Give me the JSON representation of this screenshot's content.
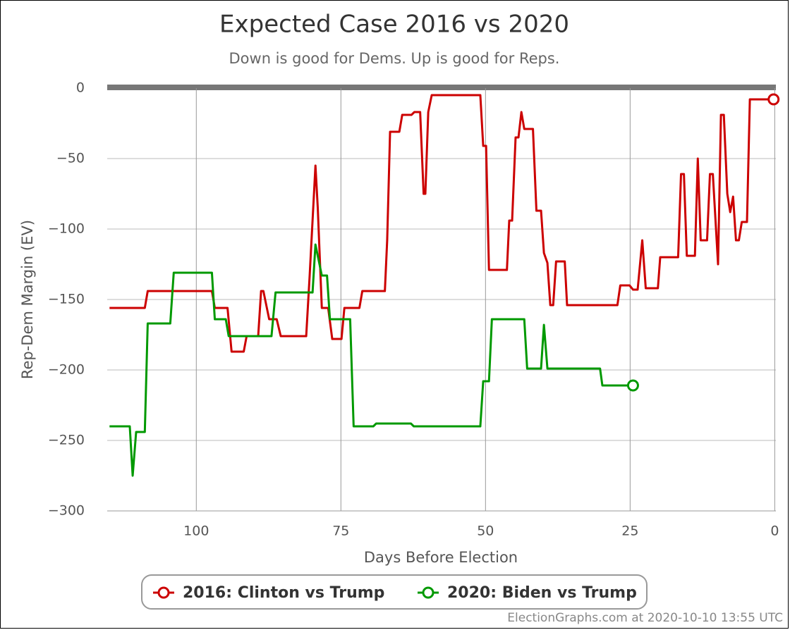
{
  "chart_data": {
    "type": "line",
    "title": "Expected Case 2016 vs 2020",
    "subtitle": "Down is good for Dems. Up is good for Reps.",
    "x_label": "Days Before Election",
    "y_label": "Rep-Dem Margin (EV)",
    "footer": "ElectionGraphs.com at 2020-10-10 13:55 UTC",
    "grid": true,
    "legend": "bottom",
    "xlim": [
      115.4,
      -0.2
    ],
    "ylim": [
      -300,
      0
    ],
    "xticks": [
      100,
      75,
      50,
      25,
      0
    ],
    "yticks": [
      0,
      {
        "value": -50,
        "label": "−50"
      },
      {
        "value": -100,
        "label": "−100"
      },
      {
        "value": -150,
        "label": "−150"
      },
      {
        "value": -200,
        "label": "−200"
      },
      {
        "value": -250,
        "label": "−250"
      },
      {
        "value": -300,
        "label": "−300"
      }
    ],
    "series": [
      {
        "name": "2016: Clinton vs Trump",
        "color": "#cc0000",
        "x": [
          115,
          108.9,
          108.4,
          97.3,
          96.8,
          94.6,
          93.9,
          91.8,
          91.3,
          89.3,
          88.8,
          88.4,
          87.8,
          87.4,
          86.1,
          85.4,
          81.0,
          80.4,
          79.4,
          79.0,
          78.3,
          77.2,
          76.5,
          74.9,
          74.4,
          71.8,
          71.3,
          67.4,
          67.0,
          66.5,
          64.9,
          64.4,
          62.8,
          62.3,
          61.3,
          60.7,
          60.4,
          59.9,
          59.3,
          50.9,
          50.4,
          49.9,
          49.4,
          46.3,
          45.9,
          45.4,
          44.8,
          44.3,
          43.8,
          43.3,
          41.8,
          41.2,
          40.4,
          39.9,
          39.3,
          38.8,
          38.3,
          37.8,
          36.3,
          35.9,
          27.2,
          26.7,
          25.1,
          24.5,
          23.7,
          22.9,
          22.3,
          20.2,
          19.8,
          16.7,
          16.2,
          15.7,
          15.2,
          13.8,
          13.3,
          12.8,
          11.7,
          11.2,
          10.7,
          9.8,
          9.3,
          8.8,
          8.2,
          7.7,
          7.2,
          6.7,
          6.2,
          5.7,
          4.8,
          4.3,
          0.2
        ],
        "values": [
          -156,
          -156,
          -144,
          -144,
          -156,
          -156,
          -187,
          -187,
          -176,
          -176,
          -144,
          -144,
          -156,
          -164,
          -164,
          -176,
          -176,
          -133,
          -55,
          -85,
          -156,
          -156,
          -178,
          -178,
          -156,
          -156,
          -144,
          -144,
          -108,
          -31,
          -31,
          -19,
          -19,
          -17,
          -17,
          -75,
          -75,
          -17,
          -5,
          -5,
          -41,
          -41,
          -129,
          -129,
          -94,
          -94,
          -35,
          -35,
          -17,
          -29,
          -29,
          -87,
          -87,
          -117,
          -124,
          -154,
          -154,
          -123,
          -123,
          -154,
          -154,
          -140,
          -140,
          -143,
          -143,
          -108,
          -142,
          -142,
          -120,
          -120,
          -61,
          -61,
          -119,
          -119,
          -50,
          -108,
          -108,
          -61,
          -61,
          -125,
          -19,
          -19,
          -75,
          -88,
          -77,
          -108,
          -108,
          -95,
          -95,
          -8,
          -8
        ]
      },
      {
        "name": "2020: Biden vs Trump",
        "color": "#009900",
        "x": [
          115,
          111.5,
          111,
          110.4,
          108.9,
          108.4,
          104.5,
          103.9,
          97.3,
          96.8,
          94.9,
          94.4,
          87.0,
          86.3,
          79.9,
          79.4,
          78.3,
          77.4,
          76.9,
          73.4,
          72.8,
          69.4,
          68.9,
          62.9,
          62.4,
          50.9,
          50.4,
          49.4,
          48.9,
          43.3,
          42.8,
          40.4,
          39.9,
          39.3,
          30.2,
          29.8,
          24.5
        ],
        "values": [
          -240,
          -240,
          -275,
          -244,
          -244,
          -167,
          -167,
          -131,
          -131,
          -164,
          -164,
          -176,
          -176,
          -145,
          -145,
          -111,
          -133,
          -133,
          -164,
          -164,
          -240,
          -240,
          -238,
          -238,
          -240,
          -240,
          -208,
          -208,
          -164,
          -164,
          -199,
          -199,
          -168,
          -199,
          -199,
          -211,
          -211
        ]
      }
    ]
  }
}
